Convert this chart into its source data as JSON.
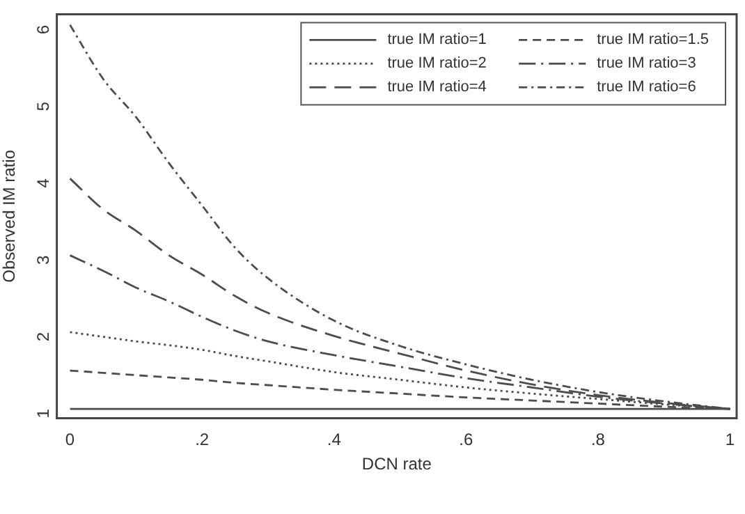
{
  "chart_data": {
    "type": "line",
    "xlabel": "DCN rate",
    "ylabel": "Observed IM ratio",
    "x": [
      0,
      0.05,
      0.1,
      0.15,
      0.2,
      0.25,
      0.3,
      0.4,
      0.5,
      0.6,
      0.7,
      0.8,
      0.9,
      1
    ],
    "xlim": [
      -0.02,
      1.01
    ],
    "ylim": [
      0.88,
      6.14
    ],
    "xticks": [
      0,
      {
        "value": 0.2,
        "label": ".2"
      },
      {
        "value": 0.4,
        "label": ".4"
      },
      {
        "value": 0.6,
        "label": ".6"
      },
      {
        "value": 0.8,
        "label": ".8"
      },
      1
    ],
    "yticks": [
      1,
      2,
      3,
      4,
      5,
      6
    ],
    "grid": false,
    "legend": "top right",
    "marker": "none",
    "series": [
      {
        "name": "true IM ratio=1",
        "color": "#4d4d4d",
        "line_style": "solid",
        "values": [
          1,
          1,
          1,
          1,
          1,
          1,
          1,
          1,
          1,
          1,
          1,
          1,
          1,
          1
        ]
      },
      {
        "name": "true IM ratio=1.5",
        "color": "#4d4d4d",
        "line_style": "dashed",
        "values": [
          1.5,
          1.47,
          1.44,
          1.41,
          1.38,
          1.34,
          1.31,
          1.25,
          1.2,
          1.15,
          1.11,
          1.07,
          1.03,
          1
        ]
      },
      {
        "name": "true IM ratio=2",
        "color": "#4d4d4d",
        "line_style": "dotted",
        "values": [
          2,
          1.94,
          1.88,
          1.83,
          1.77,
          1.69,
          1.62,
          1.48,
          1.38,
          1.28,
          1.2,
          1.13,
          1.06,
          1
        ]
      },
      {
        "name": "true IM ratio=3",
        "color": "#4d4d4d",
        "line_style": "longdashdot",
        "values": [
          3,
          2.8,
          2.58,
          2.4,
          2.2,
          2.02,
          1.88,
          1.7,
          1.55,
          1.4,
          1.28,
          1.16,
          1.07,
          1
        ]
      },
      {
        "name": "true IM ratio=4",
        "color": "#4d4d4d",
        "line_style": "longdash",
        "values": [
          4,
          3.6,
          3.32,
          3.0,
          2.75,
          2.47,
          2.25,
          1.95,
          1.72,
          1.5,
          1.32,
          1.18,
          1.08,
          1
        ]
      },
      {
        "name": "true IM ratio=6",
        "color": "#4d4d4d",
        "line_style": "dashdot",
        "values": [
          6,
          5.3,
          4.8,
          4.2,
          3.65,
          3.1,
          2.7,
          2.15,
          1.82,
          1.58,
          1.38,
          1.22,
          1.1,
          1
        ]
      }
    ]
  }
}
